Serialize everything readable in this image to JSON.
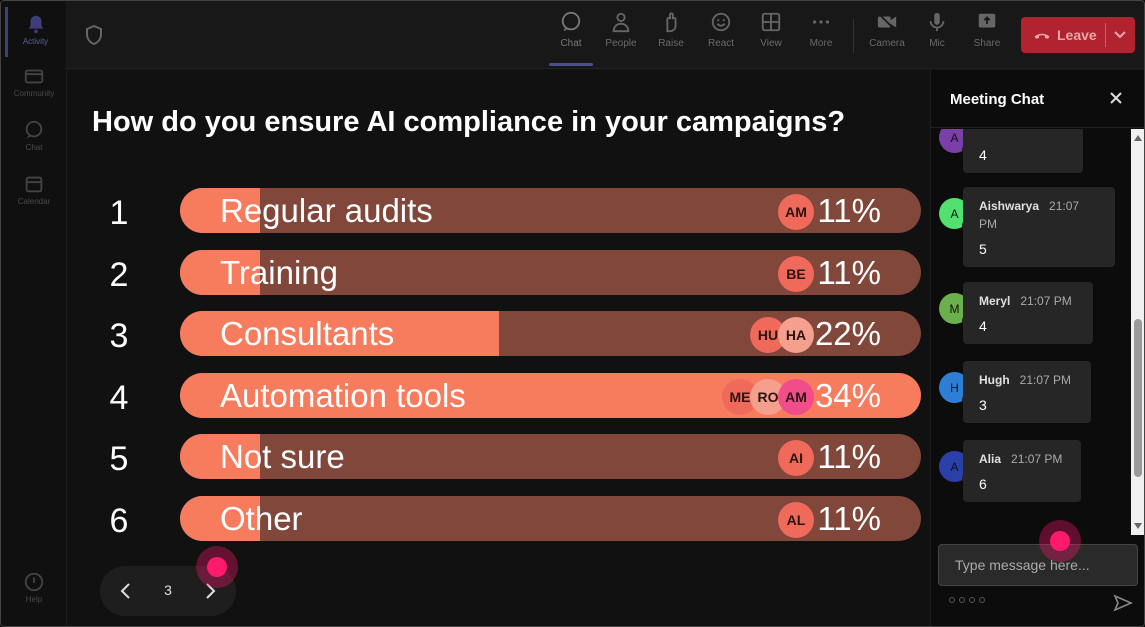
{
  "rail": {
    "items": [
      {
        "label": "Activity",
        "icon": "bell-icon",
        "active": true
      },
      {
        "label": "Community",
        "icon": "community-icon"
      },
      {
        "label": "Chat",
        "icon": "chat-icon"
      },
      {
        "label": "Calendar",
        "icon": "calendar-icon"
      }
    ],
    "help": {
      "label": "Help",
      "icon": "help-icon"
    }
  },
  "toolbar": {
    "buttons": [
      {
        "label": "Chat",
        "icon": "chat-icon",
        "active": true
      },
      {
        "label": "People",
        "icon": "people-icon"
      },
      {
        "label": "Raise",
        "icon": "hand-icon"
      },
      {
        "label": "React",
        "icon": "smiley-icon"
      },
      {
        "label": "View",
        "icon": "grid-icon"
      },
      {
        "label": "More",
        "icon": "more-icon"
      },
      {
        "label": "Camera",
        "icon": "camera-off-icon"
      },
      {
        "label": "Mic",
        "icon": "mic-icon"
      },
      {
        "label": "Share",
        "icon": "share-icon"
      }
    ],
    "leave_label": "Leave"
  },
  "poll": {
    "question": "How do you ensure AI compliance in your campaigns?",
    "options": [
      {
        "num": "1",
        "label": "Regular audits",
        "percent_text": "11%",
        "share": 11,
        "voters": [
          "AM"
        ]
      },
      {
        "num": "2",
        "label": "Training",
        "percent_text": "11%",
        "share": 11,
        "voters": [
          "BE"
        ]
      },
      {
        "num": "3",
        "label": "Consultants",
        "percent_text": "22%",
        "share": 22,
        "voters": [
          "HU",
          "HA"
        ]
      },
      {
        "num": "4",
        "label": "Automation tools",
        "percent_text": "34%",
        "share": 34,
        "voters": [
          "ME",
          "RO",
          "AM"
        ]
      },
      {
        "num": "5",
        "label": "Not sure",
        "percent_text": "11%",
        "share": 11,
        "voters": [
          "AI"
        ]
      },
      {
        "num": "6",
        "label": "Other",
        "percent_text": "11%",
        "share": 11,
        "voters": [
          "AL"
        ]
      }
    ]
  },
  "pager": {
    "page": "3"
  },
  "chat": {
    "title": "Meeting Chat",
    "messages": [
      {
        "initial": "A",
        "sender": "",
        "time": "",
        "body": "4",
        "color": "#7b3fa8"
      },
      {
        "initial": "A",
        "sender": "Aishwarya",
        "time": "21:07 PM",
        "body": "5",
        "color": "#52e070"
      },
      {
        "initial": "M",
        "sender": "Meryl",
        "time": "21:07 PM",
        "body": "4",
        "color": "#6ab04c"
      },
      {
        "initial": "H",
        "sender": "Hugh",
        "time": "21:07 PM",
        "body": "3",
        "color": "#2d7fd6"
      },
      {
        "initial": "A",
        "sender": "Alia",
        "time": "21:07 PM",
        "body": "6",
        "color": "#2a3fa8"
      }
    ],
    "input_placeholder": "Type message here..."
  }
}
